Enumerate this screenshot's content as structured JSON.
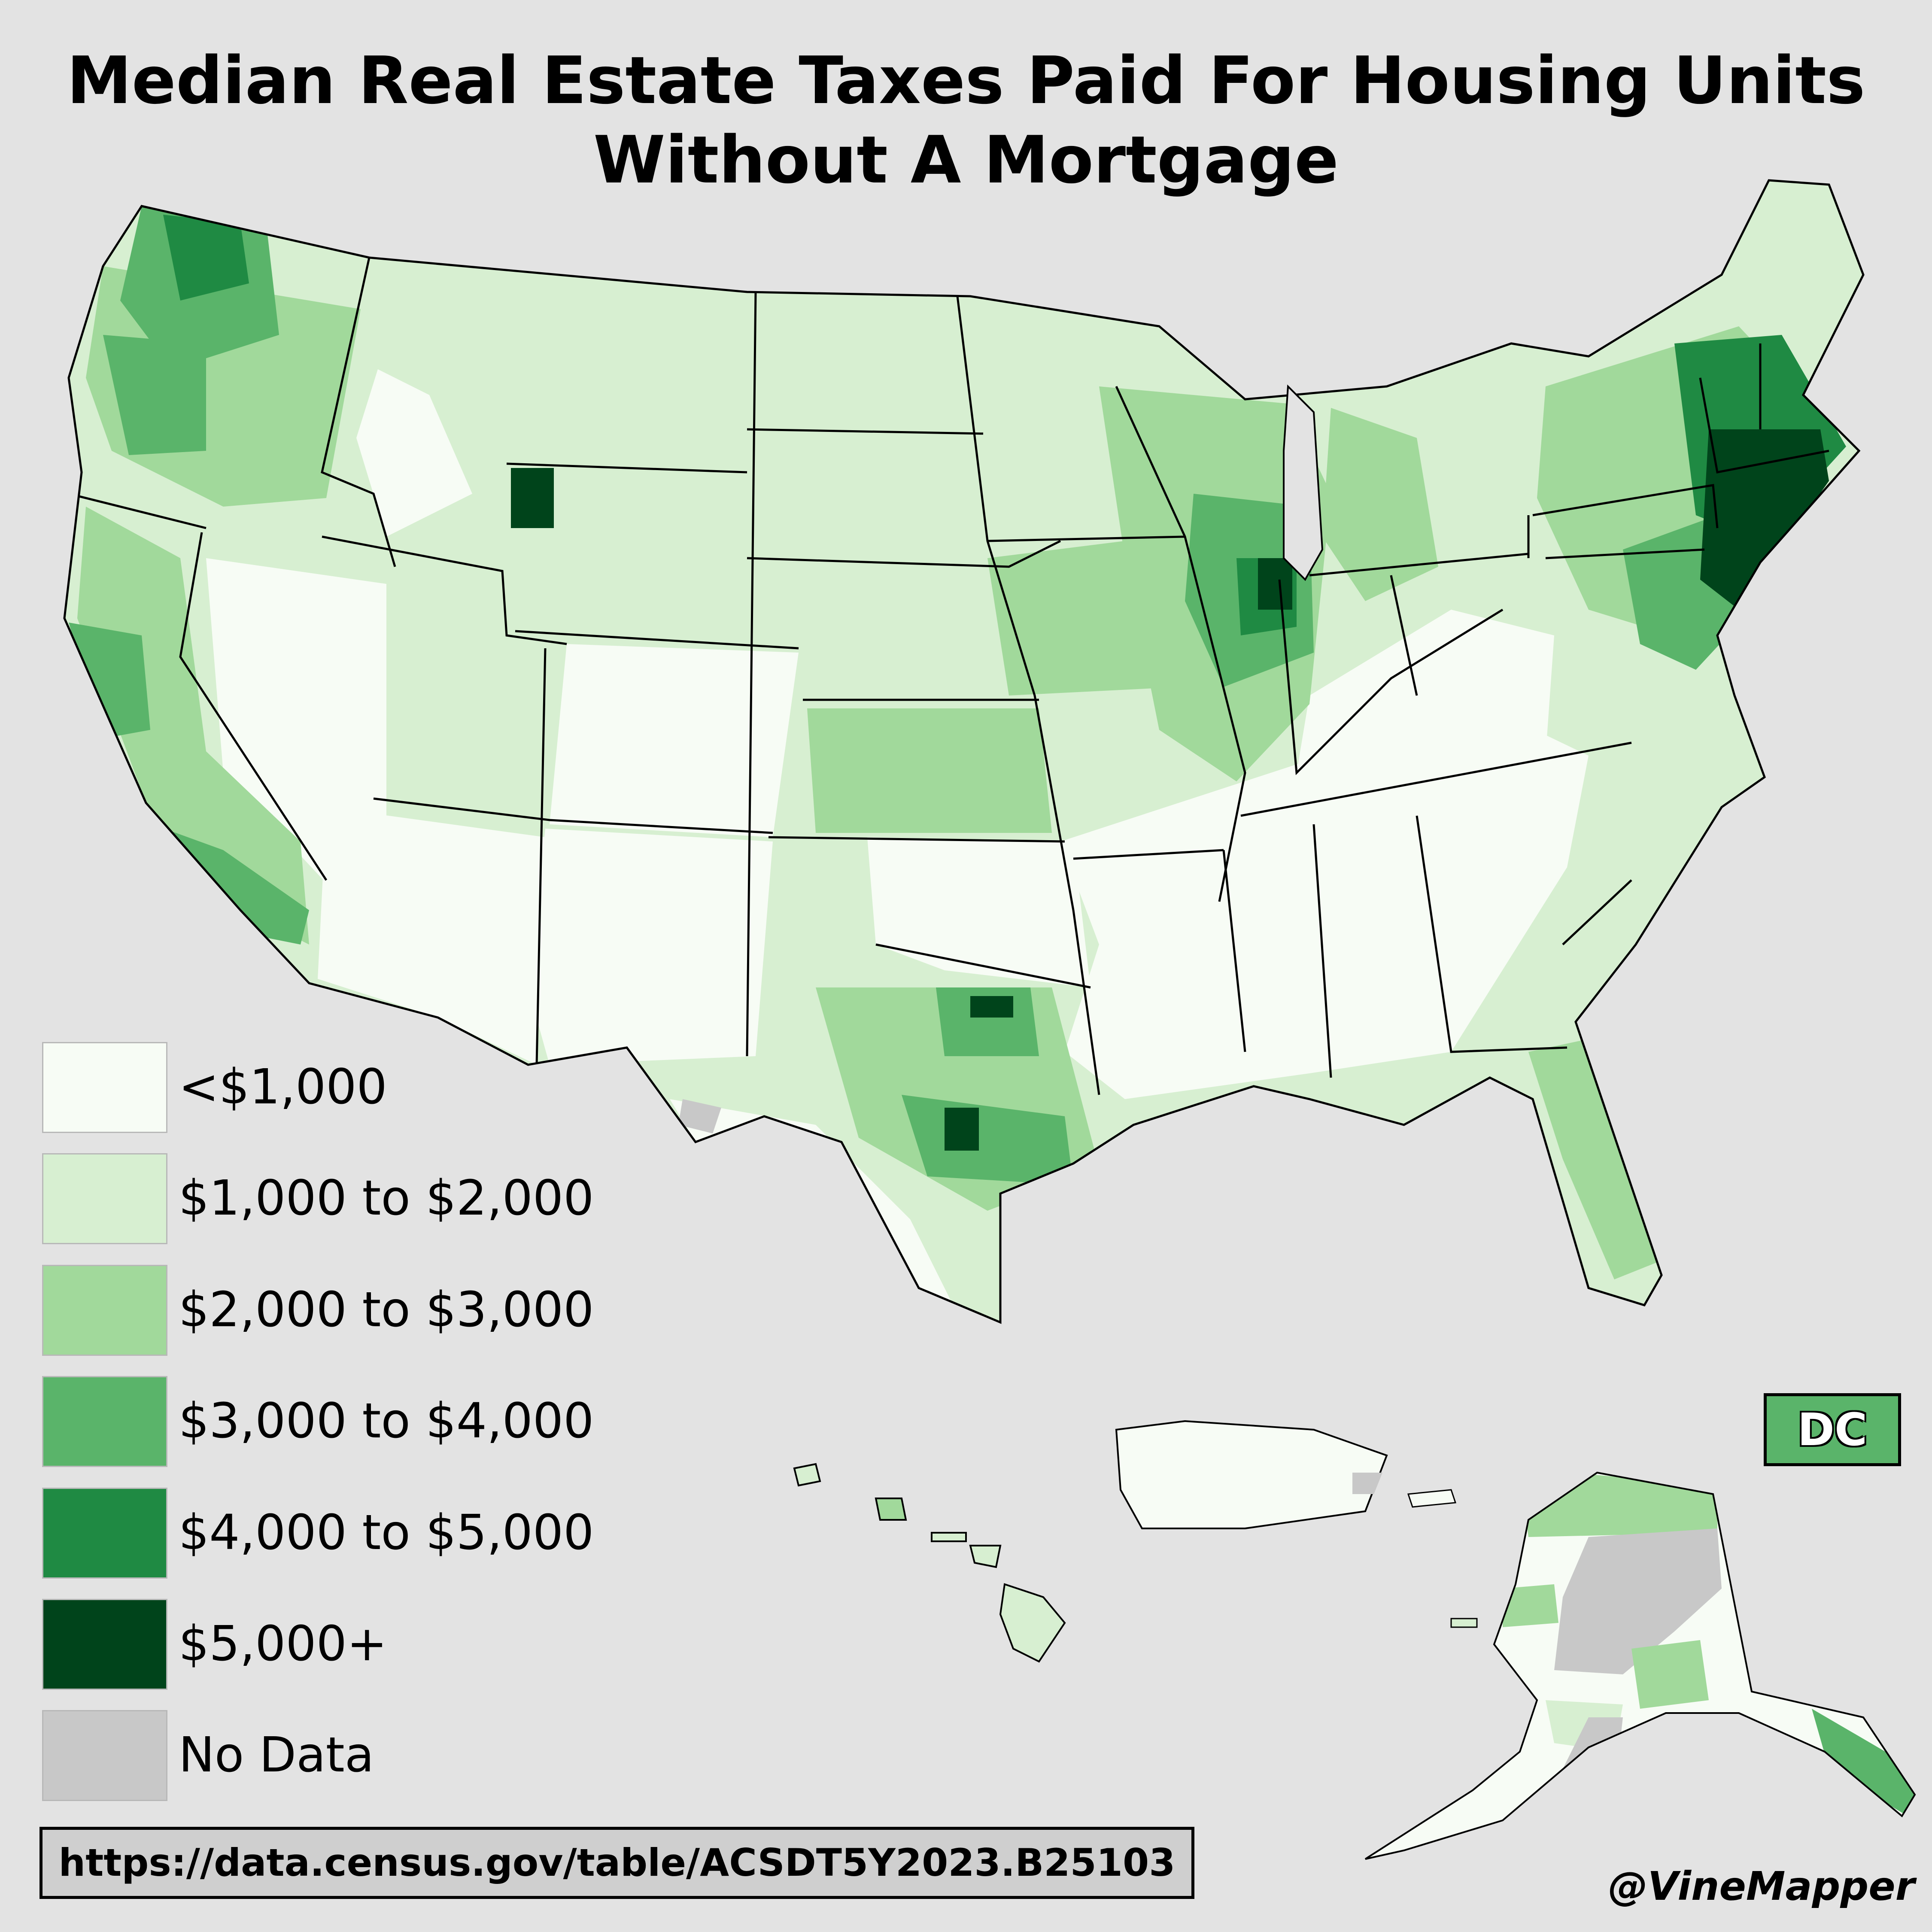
{
  "title": {
    "line1": "Median Real Estate Taxes Paid For Housing Units",
    "line2": "Without A Mortgage"
  },
  "legend": [
    {
      "label": "<$1,000",
      "color": "#f7fcf5"
    },
    {
      "label": "$1,000 to $2,000",
      "color": "#d7efd1"
    },
    {
      "label": "$2,000 to $3,000",
      "color": "#a1d99b"
    },
    {
      "label": "$3,000 to $4,000",
      "color": "#5ab46a"
    },
    {
      "label": "$4,000 to $5,000",
      "color": "#1f8a43"
    },
    {
      "label": "$5,000+",
      "color": "#00441b"
    },
    {
      "label": "No Data",
      "color": "#c8c8c8"
    }
  ],
  "dc_label": "DC",
  "dc_color": "#5ab46a",
  "source": "https://data.census.gov/table/ACSDT5Y2023.B25103",
  "credit": "@VineMapper",
  "background": "#e3e3e3"
}
